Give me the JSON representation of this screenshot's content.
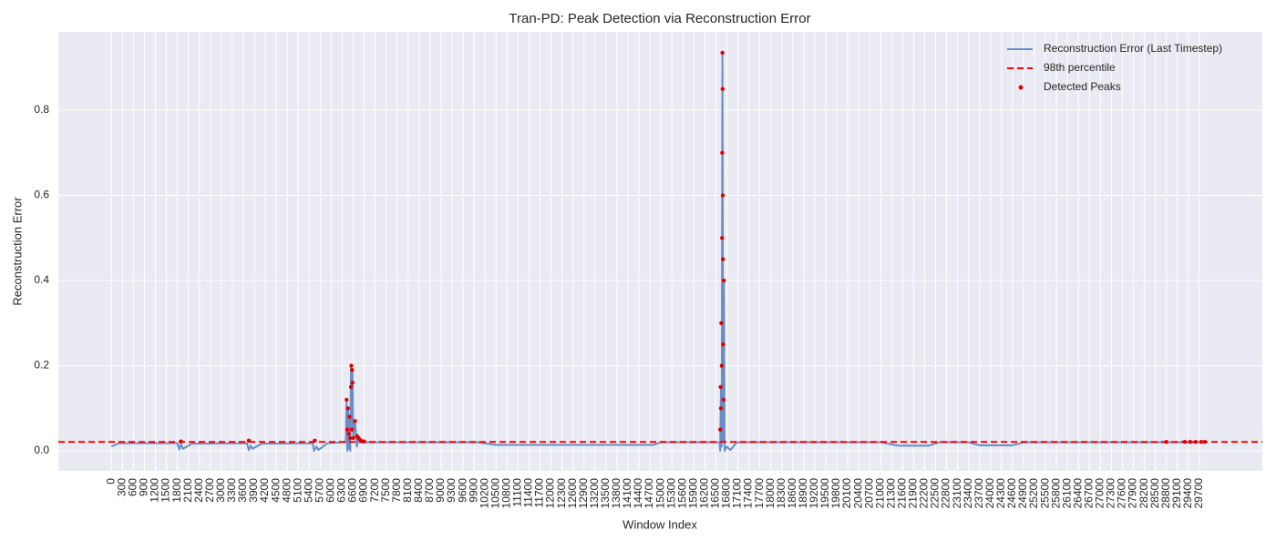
{
  "chart_data": {
    "type": "line",
    "title": "Tran-PD: Peak Detection via Reconstruction Error",
    "x_label": "Window Index",
    "y_label": "Reconstruction Error",
    "xlim": [
      -1450,
      31420
    ],
    "ylim": [
      -0.047,
      0.984
    ],
    "xticks": [
      0,
      300,
      600,
      900,
      1200,
      1500,
      1800,
      2100,
      2400,
      2700,
      3000,
      3300,
      3600,
      3900,
      4200,
      4500,
      4800,
      5100,
      5400,
      5700,
      6000,
      6300,
      6600,
      6900,
      7200,
      7500,
      7800,
      8100,
      8400,
      8700,
      9000,
      9300,
      9600,
      9900,
      10200,
      10500,
      10800,
      11100,
      11400,
      11700,
      12000,
      12300,
      12600,
      12900,
      13200,
      13500,
      13800,
      14100,
      14400,
      14700,
      15000,
      15300,
      15600,
      15900,
      16200,
      16500,
      16800,
      17100,
      17400,
      17700,
      18000,
      18300,
      18600,
      18900,
      19200,
      19500,
      19800,
      20100,
      20400,
      20700,
      21000,
      21300,
      21600,
      21900,
      22200,
      22500,
      22800,
      23100,
      23400,
      23700,
      24000,
      24300,
      24600,
      24900,
      25200,
      25500,
      25800,
      26100,
      26400,
      26700,
      27000,
      27300,
      27600,
      27900,
      28200,
      28500,
      28800,
      29100,
      29400,
      29700
    ],
    "yticks": [
      {
        "value": 0,
        "label": "0.0"
      },
      0.2,
      0.4,
      0.6,
      0.8
    ],
    "grid": true,
    "legend_loc": "upper right",
    "series": [
      {
        "name": "Reconstruction Error (Last Timestep)",
        "kind": "line",
        "color": "#6a8cc7",
        "x": [
          0,
          200,
          1800,
          1850,
          1900,
          1950,
          2200,
          3700,
          3750,
          3800,
          3850,
          4100,
          5500,
          5530,
          5600,
          5650,
          5900,
          6300,
          6400,
          6420,
          6440,
          6460,
          6480,
          6500,
          6520,
          6540,
          6560,
          6580,
          6600,
          6650,
          6700,
          6750,
          6800,
          7000,
          10000,
          10500,
          14800,
          15000,
          16600,
          16620,
          16640,
          16660,
          16680,
          16700,
          16720,
          16740,
          16800,
          16900,
          17050,
          17100,
          21000,
          21500,
          22300,
          22600,
          23400,
          23700,
          24600,
          24900,
          29500,
          29900
        ],
        "values": [
          0.01,
          0.018,
          0.018,
          0.003,
          0.015,
          0.005,
          0.017,
          0.018,
          0.002,
          0.012,
          0.005,
          0.017,
          0.018,
          0,
          0.01,
          0.002,
          0.018,
          0.02,
          0.02,
          0.12,
          0,
          0.1,
          0.005,
          0.08,
          0,
          0.2,
          0.05,
          0.19,
          0.03,
          0.07,
          0.01,
          0.03,
          0.02,
          0.02,
          0.02,
          0.014,
          0.014,
          0.02,
          0.02,
          0,
          0.15,
          0.01,
          0.935,
          0.02,
          0.4,
          0,
          0.01,
          0.002,
          0.018,
          0.02,
          0.02,
          0.012,
          0.012,
          0.02,
          0.02,
          0.013,
          0.013,
          0.02,
          0.02,
          0.02
        ]
      },
      {
        "name": "98th percentile",
        "kind": "hline",
        "color": "#ff0000",
        "value": 0.021
      },
      {
        "name": "Detected Peaks",
        "kind": "scatter",
        "color": "#e00000",
        "x": [
          1900,
          3750,
          5550,
          6420,
          6440,
          6460,
          6480,
          6500,
          6520,
          6540,
          6550,
          6560,
          6570,
          6580,
          6600,
          6650,
          6700,
          6750,
          6800,
          6850,
          6900,
          16620,
          16630,
          16640,
          16650,
          16660,
          16670,
          16675,
          16680,
          16685,
          16690,
          16695,
          16700,
          16710,
          16720,
          28800,
          29300,
          29450,
          29600,
          29750,
          29850
        ],
        "values": [
          0.022,
          0.024,
          0.024,
          0.12,
          0.05,
          0.1,
          0.04,
          0.08,
          0.03,
          0.15,
          0.2,
          0.05,
          0.19,
          0.16,
          0.03,
          0.07,
          0.035,
          0.03,
          0.025,
          0.022,
          0.022,
          0.05,
          0.15,
          0.1,
          0.3,
          0.2,
          0.5,
          0.7,
          0.935,
          0.85,
          0.6,
          0.45,
          0.25,
          0.12,
          0.4,
          0.021,
          0.021,
          0.021,
          0.021,
          0.021,
          0.021
        ]
      }
    ]
  }
}
